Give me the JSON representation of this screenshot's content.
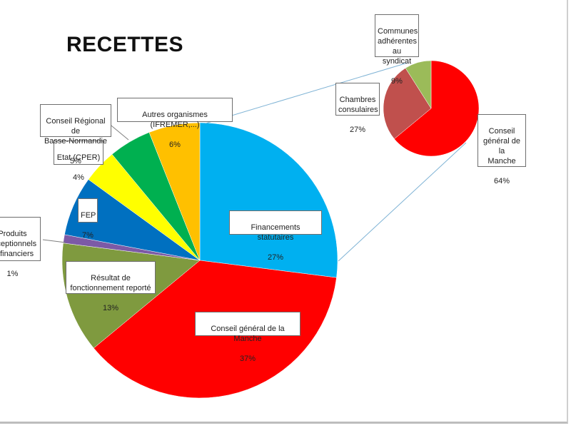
{
  "chart_data": {
    "type": "pie",
    "title": "RECETTES",
    "main_pie": {
      "slices": [
        {
          "name": "Financements statutaires",
          "value": 27,
          "value_label": "27%",
          "color": "#00B0F0"
        },
        {
          "name": "Conseil général de la Manche",
          "value": 37,
          "value_label": "37%",
          "color": "#FF0000"
        },
        {
          "name": "Résultat de fonctionnement reporté",
          "value": 13,
          "value_label": "13%",
          "color": "#7F9A3F"
        },
        {
          "name": "Produits exceptionnels et financiers",
          "value": 1,
          "value_label": "1%",
          "color": "#7C5AA6"
        },
        {
          "name": "FEP",
          "value": 7,
          "value_label": "7%",
          "color": "#0070C0"
        },
        {
          "name": "Etat (CPER)",
          "value": 4,
          "value_label": "4%",
          "color": "#FFFF00"
        },
        {
          "name": "Conseil Régional de Basse-Normandie",
          "value": 5,
          "value_label": "5%",
          "color": "#00B050"
        },
        {
          "name": "Autres organismes (IFREMER,...)",
          "value": 6,
          "value_label": "6%",
          "color": "#FFC000"
        }
      ]
    },
    "secondary_pie": {
      "breakdown_of": "Financements statutaires",
      "slices": [
        {
          "name": "Conseil général de la Manche",
          "value": 64,
          "value_label": "64%",
          "color": "#FF0000"
        },
        {
          "name": "Chambres consulaires",
          "value": 27,
          "value_label": "27%",
          "color": "#C0504D"
        },
        {
          "name": "Communes adhérentes au syndicat",
          "value": 9,
          "value_label": "9%",
          "color": "#9BBB59"
        }
      ]
    }
  },
  "labels": {
    "financements": {
      "name": "Financements statutaires",
      "pct": "27%"
    },
    "conseil_general": {
      "name": "Conseil général de la Manche",
      "pct": "37%"
    },
    "resultat": {
      "name": "Résultat de\nfonctionnement reporté",
      "pct": "13%"
    },
    "produits": {
      "name": "Produits\nexceptionnels\net financiers",
      "pct": "1%"
    },
    "fep": {
      "name": "FEP",
      "pct": "7%"
    },
    "etat": {
      "name": "Etat (CPER)",
      "pct": "4%"
    },
    "regional": {
      "name": "Conseil Régional de\nBasse-Normandie",
      "pct": "5%"
    },
    "autres": {
      "name": "Autres organismes (IFREMER,...)",
      "pct": "6%"
    },
    "communes": {
      "name": "Communes\nadhérentes\nau syndicat",
      "pct": "9%"
    },
    "chambres": {
      "name": "Chambres\nconsulaires",
      "pct": "27%"
    },
    "cg_secondary": {
      "name": "Conseil\ngénéral de la\nManche",
      "pct": "64%"
    }
  }
}
